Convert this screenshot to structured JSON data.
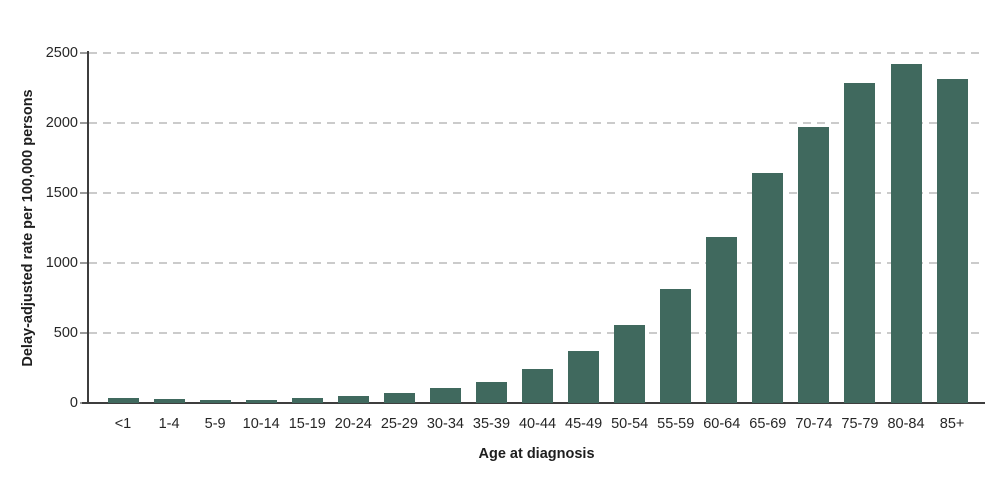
{
  "chart_data": {
    "type": "bar",
    "title": "",
    "xlabel": "Age at diagnosis",
    "ylabel": "Delay-adjusted rate per 100,000 persons",
    "categories": [
      "<1",
      "1-4",
      "5-9",
      "10-14",
      "15-19",
      "20-24",
      "25-29",
      "30-34",
      "35-39",
      "40-44",
      "45-49",
      "50-54",
      "55-59",
      "60-64",
      "65-69",
      "70-74",
      "75-79",
      "80-84",
      "85+"
    ],
    "values": [
      35,
      30,
      20,
      25,
      35,
      50,
      70,
      110,
      150,
      240,
      370,
      555,
      815,
      1185,
      1640,
      1970,
      2285,
      2425,
      2315
    ],
    "ylim": [
      0,
      2500
    ],
    "yticks": [
      0,
      500,
      1000,
      1500,
      2000,
      2500
    ],
    "grid": "horizontal-dashed",
    "legend_position": "none",
    "bar_color": "#40695e",
    "axis_color": "#3e3e3e",
    "gridline_color": "#cbcbcb",
    "text_color": "#262626",
    "background_color": "#ffffff"
  }
}
